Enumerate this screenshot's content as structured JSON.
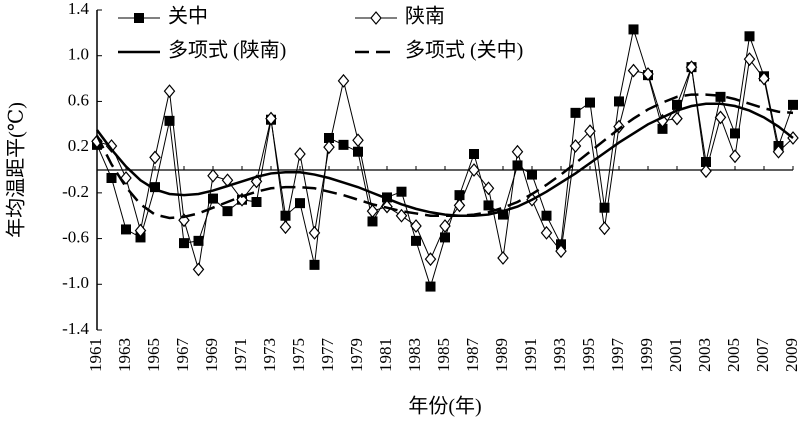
{
  "chart_data": {
    "type": "line",
    "ylabel": "年均温距平(℃)",
    "xlabel": "年份(年)",
    "x": [
      1961,
      1962,
      1963,
      1964,
      1965,
      1966,
      1967,
      1968,
      1969,
      1970,
      1971,
      1972,
      1973,
      1974,
      1975,
      1976,
      1977,
      1978,
      1979,
      1980,
      1981,
      1982,
      1983,
      1984,
      1985,
      1986,
      1987,
      1988,
      1989,
      1990,
      1991,
      1992,
      1993,
      1994,
      1995,
      1996,
      1997,
      1998,
      1999,
      2000,
      2001,
      2002,
      2003,
      2004,
      2005,
      2006,
      2007,
      2008,
      2009
    ],
    "xlim": [
      1961,
      2009
    ],
    "xticks": [
      1961,
      1963,
      1965,
      1967,
      1969,
      1971,
      1973,
      1975,
      1977,
      1979,
      1981,
      1983,
      1985,
      1987,
      1989,
      1991,
      1993,
      1995,
      1997,
      1999,
      2001,
      2003,
      2005,
      2007,
      2009
    ],
    "ylim": [
      -1.4,
      1.4
    ],
    "yticks": [
      {
        "value": -1.4,
        "label": "-1.4"
      },
      {
        "value": -1,
        "label": "-1.0"
      },
      -0.6,
      -0.2,
      0.2,
      0.6,
      {
        "value": 1,
        "label": "1.0"
      },
      1.4
    ],
    "reference_line": 0,
    "series": [
      {
        "name": "关中",
        "color": "#000000",
        "marker": "square",
        "line_style": "solid",
        "line_width": 1,
        "values": [
          0.22,
          -0.07,
          -0.52,
          -0.59,
          -0.15,
          0.43,
          -0.64,
          -0.62,
          -0.25,
          -0.36,
          -0.26,
          -0.28,
          0.44,
          -0.4,
          -0.29,
          -0.83,
          0.28,
          0.22,
          0.16,
          -0.45,
          -0.24,
          -0.19,
          -0.62,
          -1.02,
          -0.59,
          -0.22,
          0.14,
          -0.31,
          -0.39,
          0.04,
          -0.04,
          -0.4,
          -0.65,
          0.5,
          0.59,
          -0.33,
          0.6,
          1.23,
          0.83,
          0.36,
          0.57,
          0.9,
          0.07,
          0.64,
          0.32,
          1.17,
          0.82,
          0.21,
          0.57
        ]
      },
      {
        "name": "陕南",
        "color": "#000000",
        "marker": "diamond",
        "line_style": "solid",
        "line_width": 1,
        "values": [
          0.25,
          0.21,
          -0.07,
          -0.53,
          0.11,
          0.69,
          -0.44,
          -0.87,
          -0.05,
          -0.09,
          -0.26,
          -0.1,
          0.45,
          -0.5,
          0.14,
          -0.55,
          0.2,
          0.78,
          0.26,
          -0.36,
          -0.32,
          -0.4,
          -0.49,
          -0.78,
          -0.49,
          -0.31,
          0,
          -0.16,
          -0.77,
          0.16,
          -0.26,
          -0.55,
          -0.71,
          0.21,
          0.34,
          -0.51,
          0.38,
          0.87,
          0.84,
          0.43,
          0.45,
          0.9,
          -0.01,
          0.46,
          0.12,
          0.97,
          0.8,
          0.16,
          0.28
        ]
      },
      {
        "name": "多项式 (陕南)",
        "color": "#000000",
        "marker": "none",
        "line_style": "solid",
        "line_width": 2.5,
        "values": [
          0.35,
          0.18,
          0.03,
          -0.09,
          -0.17,
          -0.21,
          -0.22,
          -0.21,
          -0.18,
          -0.14,
          -0.1,
          -0.06,
          -0.03,
          -0.02,
          -0.02,
          -0.04,
          -0.07,
          -0.11,
          -0.15,
          -0.2,
          -0.25,
          -0.3,
          -0.34,
          -0.37,
          -0.39,
          -0.4,
          -0.4,
          -0.39,
          -0.36,
          -0.32,
          -0.26,
          -0.19,
          -0.11,
          -0.03,
          0.06,
          0.15,
          0.24,
          0.32,
          0.4,
          0.46,
          0.52,
          0.56,
          0.58,
          0.58,
          0.56,
          0.52,
          0.46,
          0.38,
          0.28
        ]
      },
      {
        "name": "多项式 (关中)",
        "color": "#000000",
        "marker": "none",
        "line_style": "dashed",
        "line_width": 2.5,
        "values": [
          0.3,
          0.05,
          -0.15,
          -0.3,
          -0.39,
          -0.42,
          -0.41,
          -0.38,
          -0.33,
          -0.28,
          -0.23,
          -0.19,
          -0.16,
          -0.15,
          -0.15,
          -0.16,
          -0.19,
          -0.22,
          -0.26,
          -0.3,
          -0.33,
          -0.36,
          -0.38,
          -0.4,
          -0.4,
          -0.4,
          -0.39,
          -0.37,
          -0.33,
          -0.28,
          -0.21,
          -0.13,
          -0.04,
          0.06,
          0.16,
          0.26,
          0.36,
          0.45,
          0.53,
          0.59,
          0.64,
          0.66,
          0.66,
          0.65,
          0.62,
          0.58,
          0.54,
          0.51,
          0.5
        ]
      }
    ]
  }
}
